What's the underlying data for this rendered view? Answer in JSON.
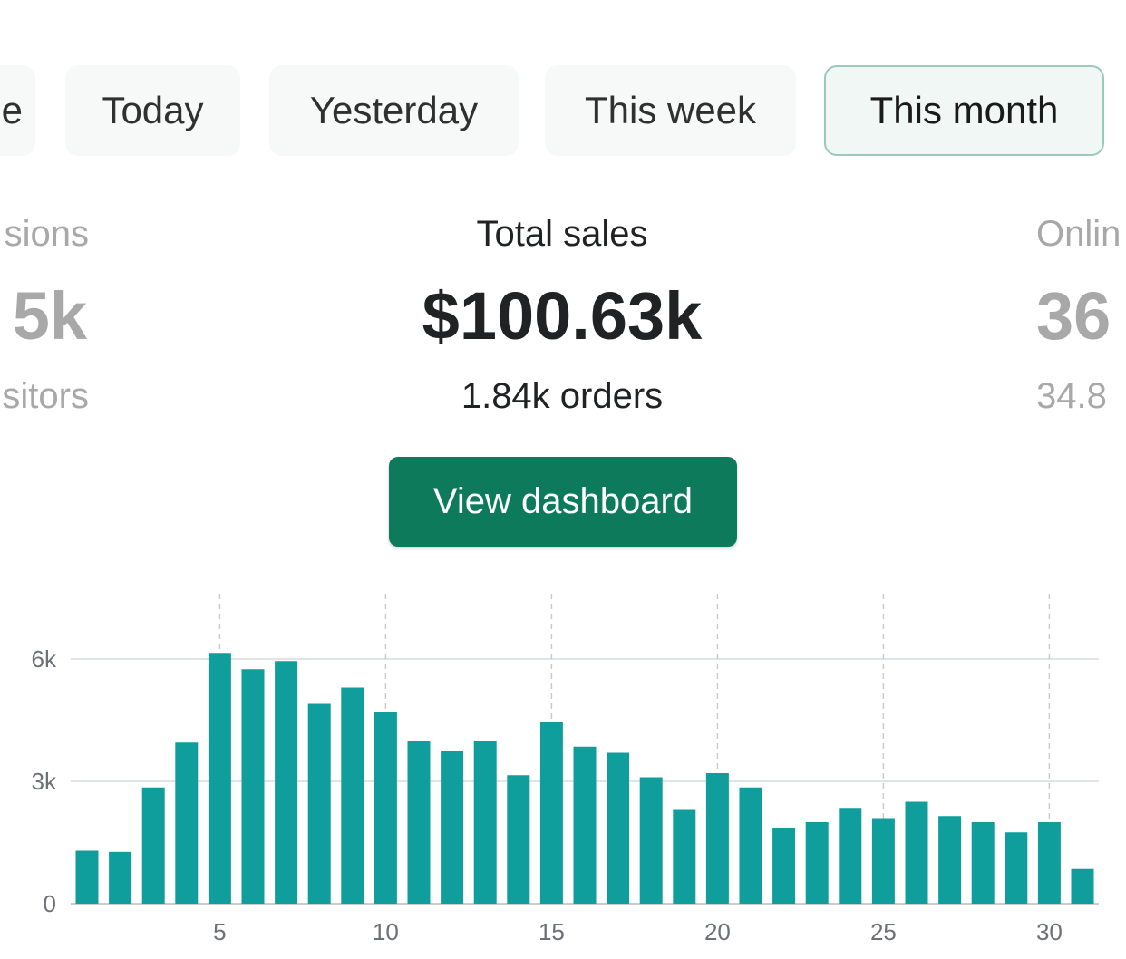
{
  "tabs": [
    {
      "label": "e"
    },
    {
      "label": "Today"
    },
    {
      "label": "Yesterday"
    },
    {
      "label": "This week"
    },
    {
      "label": "This month"
    }
  ],
  "metrics": {
    "left": {
      "label": "sions",
      "value": "5k",
      "sub": "sitors"
    },
    "center": {
      "label": "Total sales",
      "value": "$100.63k",
      "sub": "1.84k orders"
    },
    "right": {
      "label": "Onlin",
      "value": "36",
      "sub": "34.8"
    }
  },
  "dashboard_button": {
    "label": "View dashboard"
  },
  "colors": {
    "bar": "#0f9e9c",
    "button": "#0e7a5c",
    "active_tab_border": "#9bc9bd"
  },
  "chart_data": {
    "type": "bar",
    "x": [
      1,
      2,
      3,
      4,
      5,
      6,
      7,
      8,
      9,
      10,
      11,
      12,
      13,
      14,
      15,
      16,
      17,
      18,
      19,
      20,
      21,
      22,
      23,
      24,
      25,
      26,
      27,
      28,
      29,
      30,
      31
    ],
    "values": [
      1300,
      1270,
      2850,
      3950,
      6150,
      5750,
      5950,
      4900,
      5300,
      4700,
      4000,
      3750,
      4000,
      3150,
      4450,
      3850,
      3700,
      3100,
      2300,
      3200,
      2850,
      1850,
      2000,
      2350,
      2100,
      2500,
      2150,
      2000,
      1750,
      2000,
      850
    ],
    "x_ticks": [
      {
        "value": 5,
        "label": "5"
      },
      {
        "value": 10,
        "label": "10"
      },
      {
        "value": 15,
        "label": "15"
      },
      {
        "value": 20,
        "label": "20"
      },
      {
        "value": 25,
        "label": "25"
      },
      {
        "value": 30,
        "label": "30"
      }
    ],
    "y_ticks": [
      {
        "value": 0,
        "label": "0"
      },
      {
        "value": 3000,
        "label": "3k"
      },
      {
        "value": 6000,
        "label": "6k"
      }
    ],
    "ylim": [
      0,
      7500
    ],
    "grid": true
  }
}
